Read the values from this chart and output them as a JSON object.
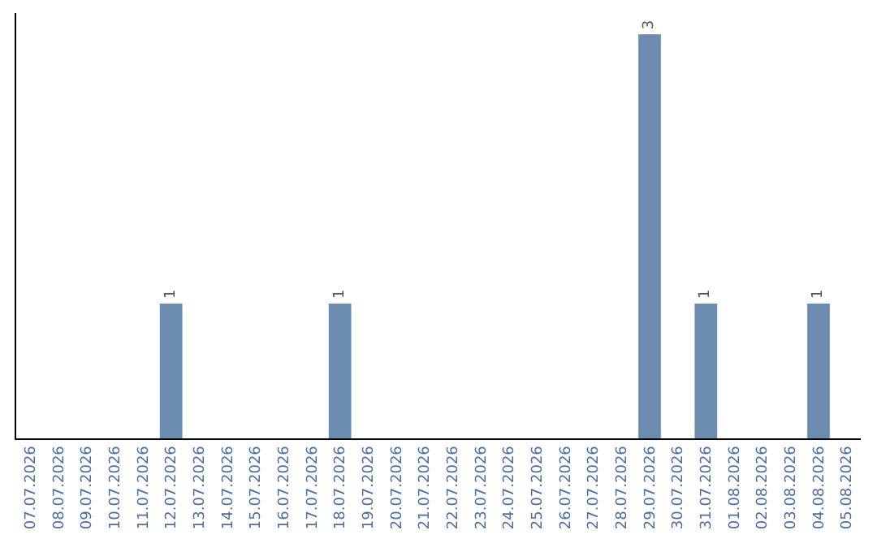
{
  "chart_data": {
    "type": "bar",
    "categories": [
      "07.07.2026",
      "08.07.2026",
      "09.07.2026",
      "10.07.2026",
      "11.07.2026",
      "12.07.2026",
      "13.07.2026",
      "14.07.2026",
      "15.07.2026",
      "16.07.2026",
      "17.07.2026",
      "18.07.2026",
      "19.07.2026",
      "20.07.2026",
      "21.07.2026",
      "22.07.2026",
      "23.07.2026",
      "24.07.2026",
      "25.07.2026",
      "26.07.2026",
      "27.07.2026",
      "28.07.2026",
      "29.07.2026",
      "30.07.2026",
      "31.07.2026",
      "01.08.2026",
      "02.08.2026",
      "03.08.2026",
      "04.08.2026",
      "05.08.2026"
    ],
    "values": [
      0,
      0,
      0,
      0,
      0,
      1,
      0,
      0,
      0,
      0,
      0,
      1,
      0,
      0,
      0,
      0,
      0,
      0,
      0,
      0,
      0,
      0,
      3,
      0,
      1,
      0,
      0,
      0,
      1,
      0
    ],
    "value_labels": [
      null,
      null,
      null,
      null,
      null,
      "1",
      null,
      null,
      null,
      null,
      null,
      "1",
      null,
      null,
      null,
      null,
      null,
      null,
      null,
      null,
      null,
      null,
      "3",
      null,
      "1",
      null,
      null,
      null,
      "1",
      null
    ],
    "color": "#6a8caf",
    "tick_labels": "x"
  }
}
